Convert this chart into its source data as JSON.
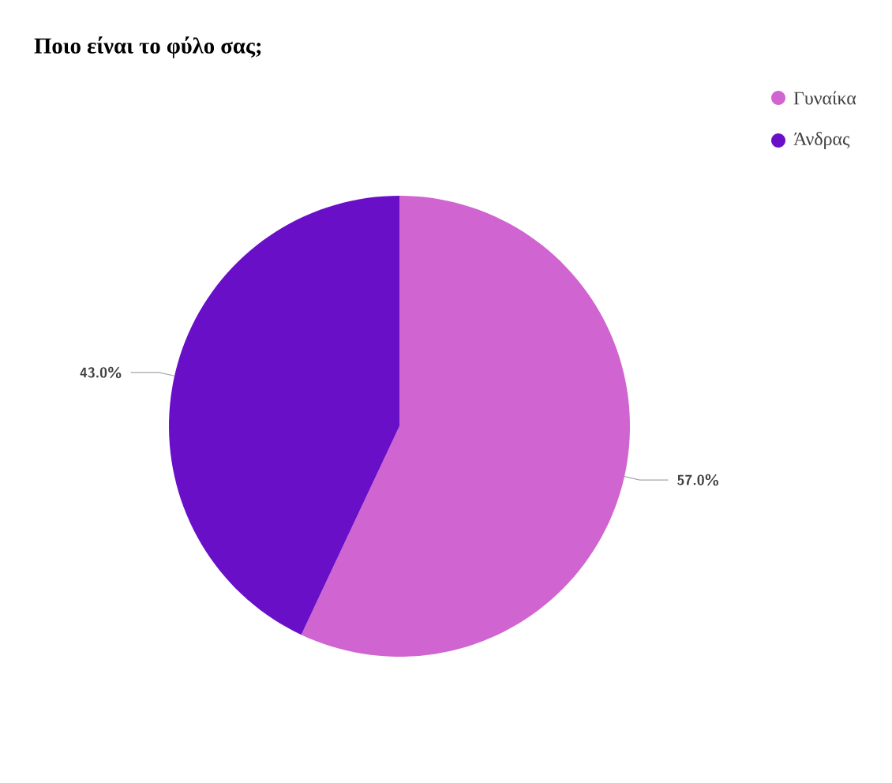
{
  "chart_data": {
    "type": "pie",
    "title": "Ποιο είναι το φύλο σας;",
    "categories": [
      "Γυναίκα",
      "Άνδρας"
    ],
    "values": [
      57,
      43
    ],
    "value_labels": [
      "57.0%",
      "43.0%"
    ],
    "colors": [
      "#d064d0",
      "#6a0fc8"
    ],
    "legend": "top right"
  }
}
